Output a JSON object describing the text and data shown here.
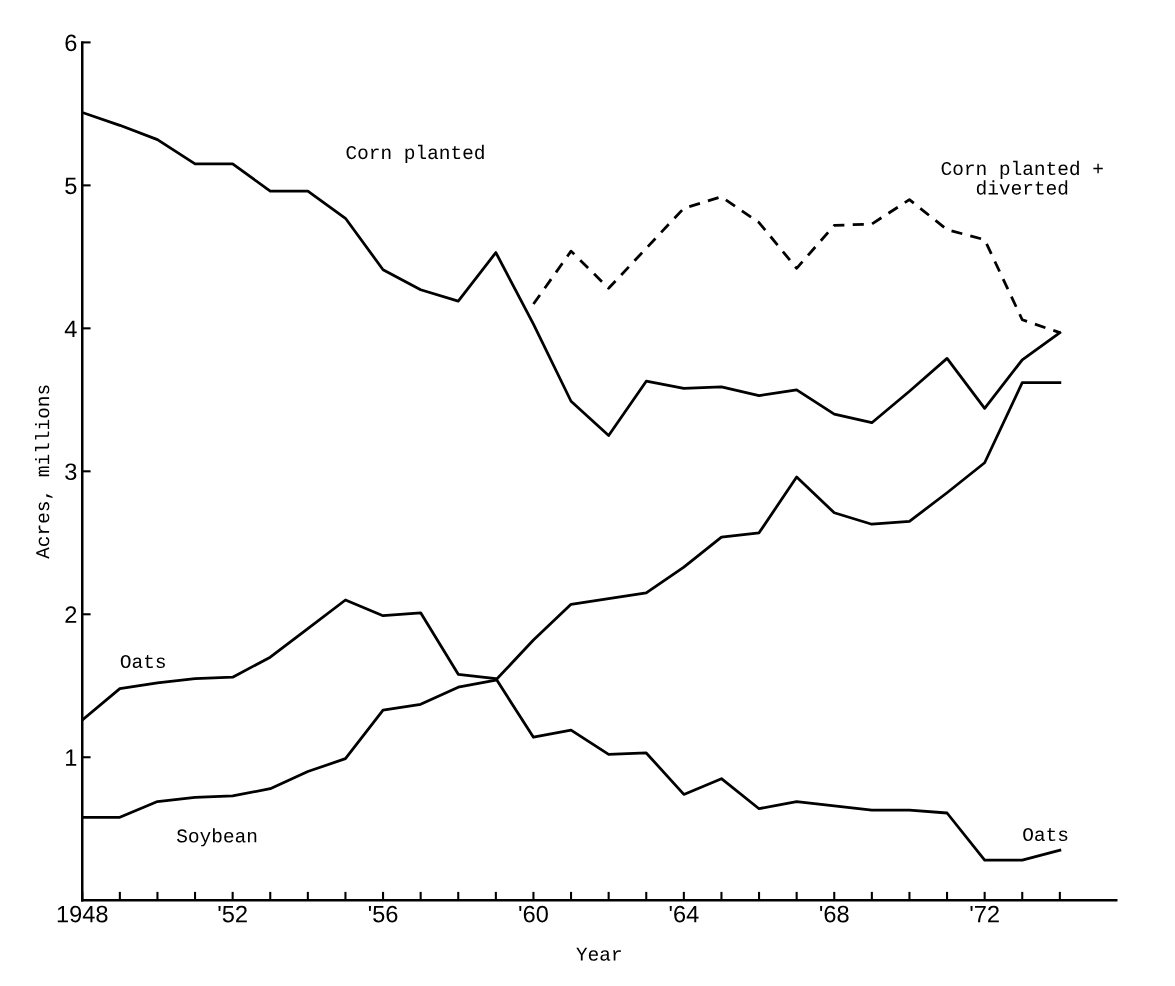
{
  "chart_data": {
    "type": "line",
    "xlabel": "Year",
    "ylabel": "Acres, millions",
    "x": [
      1948,
      1949,
      1950,
      1951,
      1952,
      1953,
      1954,
      1955,
      1956,
      1957,
      1958,
      1959,
      1960,
      1961,
      1962,
      1963,
      1964,
      1965,
      1966,
      1967,
      1968,
      1969,
      1970,
      1971,
      1972,
      1973,
      1974
    ],
    "series": [
      {
        "name": "Corn planted",
        "color": "#000000",
        "line_style": "solid",
        "values": [
          5.51,
          5.42,
          5.32,
          5.15,
          5.15,
          4.96,
          4.96,
          4.77,
          4.41,
          4.27,
          4.19,
          4.53,
          4.03,
          3.49,
          3.25,
          3.63,
          3.58,
          3.59,
          3.53,
          3.57,
          3.4,
          3.34,
          3.56,
          3.79,
          3.44,
          3.78,
          3.97
        ]
      },
      {
        "name": "Corn planted +\ndiverted",
        "color": "#000000",
        "line_style": "dashed",
        "values": [
          null,
          null,
          null,
          null,
          null,
          null,
          null,
          null,
          null,
          null,
          null,
          null,
          4.17,
          4.54,
          4.28,
          4.56,
          4.84,
          4.92,
          4.74,
          4.42,
          4.72,
          4.73,
          4.9,
          4.69,
          4.62,
          4.06,
          3.97
        ]
      },
      {
        "name": "Oats",
        "color": "#000000",
        "line_style": "solid",
        "values": [
          1.26,
          1.48,
          1.52,
          1.55,
          1.56,
          1.7,
          1.9,
          2.1,
          1.99,
          2.01,
          1.58,
          1.55,
          1.14,
          1.19,
          1.02,
          1.03,
          0.74,
          0.85,
          0.64,
          0.69,
          0.66,
          0.63,
          0.63,
          0.61,
          0.28,
          0.28,
          0.35
        ]
      },
      {
        "name": "Soybean",
        "color": "#000000",
        "line_style": "solid",
        "values": [
          0.58,
          0.58,
          0.69,
          0.72,
          0.73,
          0.78,
          0.9,
          0.99,
          1.33,
          1.37,
          1.49,
          1.54,
          1.82,
          2.07,
          2.11,
          2.15,
          2.33,
          2.54,
          2.57,
          2.96,
          2.71,
          2.63,
          2.65,
          2.85,
          3.06,
          3.62,
          3.62
        ]
      }
    ],
    "annotations": [
      {
        "text": "Oats",
        "x": 1973,
        "y": 0.28
      }
    ],
    "xlim": [
      1948,
      1975.5
    ],
    "xticks": [
      1948,
      {
        "value": 1949,
        "label": null
      },
      {
        "value": 1950,
        "label": null
      },
      {
        "value": 1951,
        "label": null
      },
      {
        "value": 1952,
        "label": "'52"
      },
      {
        "value": 1953,
        "label": null
      },
      {
        "value": 1954,
        "label": null
      },
      {
        "value": 1955,
        "label": null
      },
      {
        "value": 1956,
        "label": "'56"
      },
      {
        "value": 1957,
        "label": null
      },
      {
        "value": 1958,
        "label": null
      },
      {
        "value": 1959,
        "label": null
      },
      {
        "value": 1960,
        "label": "'60"
      },
      {
        "value": 1961,
        "label": null
      },
      {
        "value": 1962,
        "label": null
      },
      {
        "value": 1963,
        "label": null
      },
      {
        "value": 1964,
        "label": "'64"
      },
      {
        "value": 1965,
        "label": null
      },
      {
        "value": 1966,
        "label": null
      },
      {
        "value": 1967,
        "label": null
      },
      {
        "value": 1968,
        "label": "'68"
      },
      {
        "value": 1969,
        "label": null
      },
      {
        "value": 1970,
        "label": null
      },
      {
        "value": 1971,
        "label": null
      },
      {
        "value": 1972,
        "label": "'72"
      },
      {
        "value": 1973,
        "label": null
      },
      {
        "value": 1974,
        "label": null
      }
    ],
    "ylim": [
      0,
      6
    ],
    "yticks": [
      1,
      2,
      3,
      4,
      5,
      6
    ],
    "grid": false,
    "legend": false,
    "marker": "none"
  }
}
